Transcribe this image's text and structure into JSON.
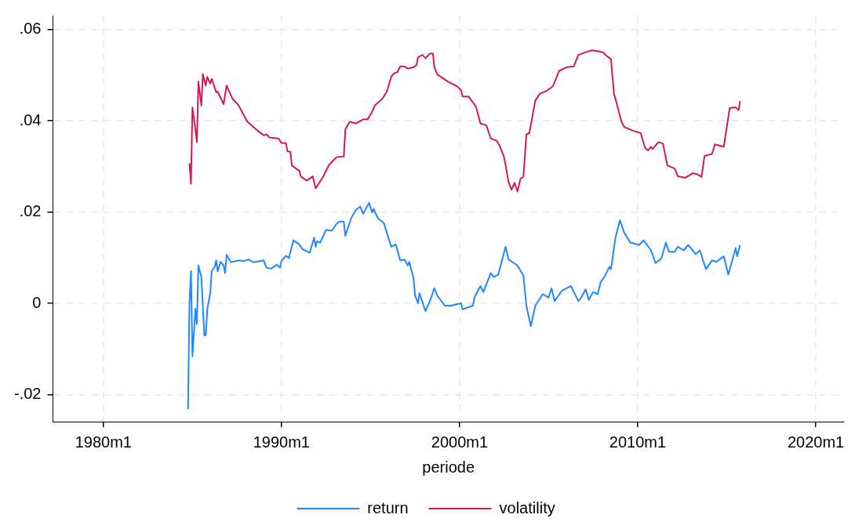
{
  "chart_data": {
    "type": "line",
    "xlabel": "periode",
    "legend": "bottom",
    "grid": true,
    "marker": "none",
    "line_style": "solid",
    "xlim": [
      "1977-03",
      "2021-08"
    ],
    "xticks": [
      {
        "value": "1980-01",
        "label": "1980m1"
      },
      {
        "value": "1990-01",
        "label": "1990m1"
      },
      {
        "value": "2000-01",
        "label": "2000m1"
      },
      {
        "value": "2010-01",
        "label": "2010m1"
      },
      {
        "value": "2020-01",
        "label": "2020m1"
      }
    ],
    "ylim": [
      -0.0259,
      0.063
    ],
    "yticks": [
      {
        "value": -0.02,
        "label": "-.02"
      },
      {
        "value": 0,
        "label": "0"
      },
      {
        "value": 0.02,
        "label": ".02"
      },
      {
        "value": 0.04,
        "label": ".04"
      },
      {
        "value": 0.06,
        "label": ".06"
      }
    ],
    "series": [
      {
        "name": "return",
        "color": "#1f88ff",
        "x": [
          "1984-10",
          "1984-11",
          "1984-12",
          "1985-01",
          "1985-03",
          "1985-04",
          "1985-05",
          "1985-07",
          "1985-09",
          "1985-10",
          "1985-11",
          "1986-01",
          "1986-02",
          "1986-04",
          "1986-05",
          "1986-06",
          "1986-08",
          "1986-10",
          "1986-11",
          "1986-12",
          "1987-03",
          "1987-08",
          "1987-12",
          "1988-03",
          "1988-06",
          "1989-01",
          "1989-03",
          "1989-06",
          "1989-10",
          "1989-12",
          "1990-01",
          "1990-04",
          "1990-06",
          "1990-09",
          "1991-01",
          "1991-03",
          "1991-08",
          "1991-11",
          "1991-12",
          "1992-01",
          "1992-03",
          "1992-07",
          "1992-11",
          "1993-02",
          "1993-04",
          "1993-07",
          "1993-08",
          "1993-12",
          "1994-03",
          "1994-06",
          "1994-08",
          "1994-12",
          "1995-02",
          "1995-03",
          "1995-06",
          "1995-10",
          "1995-12",
          "1996-03",
          "1996-06",
          "1996-09",
          "1996-12",
          "1997-02",
          "1997-03",
          "1997-06",
          "1997-07",
          "1997-09",
          "1997-10",
          "1998-02",
          "1998-05",
          "1998-08",
          "1998-10",
          "1999-03",
          "1999-07",
          "2000-02",
          "2000-03",
          "2000-10",
          "2000-11",
          "2001-03",
          "2001-05",
          "2001-10",
          "2001-12",
          "2002-03",
          "2002-04",
          "2002-08",
          "2002-10",
          "2003-04",
          "2003-08",
          "2003-10",
          "2004-01",
          "2004-04",
          "2004-09",
          "2005-01",
          "2005-03",
          "2005-05",
          "2005-10",
          "2006-04",
          "2006-09",
          "2006-11",
          "2007-02",
          "2007-04",
          "2007-07",
          "2007-10",
          "2007-12",
          "2008-03",
          "2008-06",
          "2008-07",
          "2008-10",
          "2009-01",
          "2009-04",
          "2009-08",
          "2010-02",
          "2010-05",
          "2010-10",
          "2011-01",
          "2011-05",
          "2011-08",
          "2011-10",
          "2012-02",
          "2012-04",
          "2012-08",
          "2012-11",
          "2013-04",
          "2013-07",
          "2013-09",
          "2013-11",
          "2014-03",
          "2014-06",
          "2014-11",
          "2015-02",
          "2015-04",
          "2015-07",
          "2015-08",
          "2015-10"
        ],
        "values": [
          -0.0232,
          0,
          0.0071,
          -0.0116,
          -0.0012,
          -0.0045,
          0.0083,
          0.0058,
          -0.007,
          -0.007,
          -0.0013,
          0.0022,
          0.0071,
          0.008,
          0.0094,
          0.007,
          0.0091,
          0.0083,
          0.0066,
          0.0106,
          0.009,
          0.0094,
          0.0093,
          0.0096,
          0.009,
          0.0094,
          0.0078,
          0.0076,
          0.0085,
          0.0078,
          0.0093,
          0.0104,
          0.0099,
          0.0138,
          0.0129,
          0.0119,
          0.0111,
          0.0144,
          0.0124,
          0.0136,
          0.0133,
          0.0161,
          0.0159,
          0.0174,
          0.0179,
          0.0179,
          0.0148,
          0.0187,
          0.0204,
          0.0212,
          0.0196,
          0.022,
          0.0199,
          0.0207,
          0.0186,
          0.0176,
          0.0154,
          0.0124,
          0.0129,
          0.0094,
          0.0096,
          0.0083,
          0.0091,
          0.0055,
          0.0017,
          0,
          0.0022,
          -0.0017,
          0.0005,
          0.0033,
          0.0017,
          -0.0005,
          -0.0005,
          0,
          -0.0013,
          -0.0005,
          0.0013,
          0.0038,
          0.0025,
          0.0066,
          0.0058,
          0.0063,
          0.0075,
          0.0124,
          0.0096,
          0.0083,
          0.0061,
          -0.0005,
          -0.005,
          -0.0005,
          0.002,
          0.0013,
          0.0033,
          0.0005,
          0.0028,
          0.0038,
          0.0005,
          0.0013,
          0.0031,
          0.0008,
          0.0025,
          0.002,
          0.0046,
          0.0061,
          0.008,
          0.0075,
          0.0144,
          0.0182,
          0.0154,
          0.0133,
          0.0128,
          0.0138,
          0.0116,
          0.0088,
          0.0099,
          0.0133,
          0.0113,
          0.0113,
          0.0124,
          0.0116,
          0.0128,
          0.0108,
          0.0116,
          0.0094,
          0.0075,
          0.0094,
          0.0091,
          0.0103,
          0.0063,
          0.0086,
          0.0121,
          0.0103,
          0.0128
        ]
      },
      {
        "name": "volatility",
        "color": "#d6185a",
        "x": [
          "1984-11",
          "1984-12",
          "1985-01",
          "1985-03",
          "1985-04",
          "1985-05",
          "1985-07",
          "1985-08",
          "1985-10",
          "1985-11",
          "1986-01",
          "1986-02",
          "1986-05",
          "1986-06",
          "1986-10",
          "1986-12",
          "1987-04",
          "1987-08",
          "1988-02",
          "1988-09",
          "1989-01",
          "1989-03",
          "1989-05",
          "1989-11",
          "1990-01",
          "1990-04",
          "1990-05",
          "1990-07",
          "1990-08",
          "1991-01",
          "1991-02",
          "1991-06",
          "1991-10",
          "1991-12",
          "1992-05",
          "1992-09",
          "1992-11",
          "1993-02",
          "1993-07",
          "1993-08",
          "1993-11",
          "1994-03",
          "1994-08",
          "1994-11",
          "1995-02",
          "1995-04",
          "1995-09",
          "1995-12",
          "1996-03",
          "1996-05",
          "1996-07",
          "1996-09",
          "1996-12",
          "1997-02",
          "1997-06",
          "1997-08",
          "1997-09",
          "1997-12",
          "1998-02",
          "1998-05",
          "1998-07",
          "1998-08",
          "1998-10",
          "1999-06",
          "1999-11",
          "2000-02",
          "2000-03",
          "2000-07",
          "2000-12",
          "2001-03",
          "2001-07",
          "2001-10",
          "2002-02",
          "2002-04",
          "2002-07",
          "2002-10",
          "2002-12",
          "2003-02",
          "2003-04",
          "2003-06",
          "2003-08",
          "2003-10",
          "2003-12",
          "2004-04",
          "2004-07",
          "2004-12",
          "2005-04",
          "2005-08",
          "2006-01",
          "2006-06",
          "2006-09",
          "2007-02",
          "2007-06",
          "2007-11",
          "2008-02",
          "2008-04",
          "2008-07",
          "2008-09",
          "2008-11",
          "2009-02",
          "2009-04",
          "2009-10",
          "2010-03",
          "2010-06",
          "2010-08",
          "2010-10",
          "2010-11",
          "2011-03",
          "2011-06",
          "2011-09",
          "2012-02",
          "2012-04",
          "2012-09",
          "2013-02",
          "2013-05",
          "2013-08",
          "2013-10",
          "2014-03",
          "2014-05",
          "2014-11",
          "2015-03",
          "2015-07",
          "2015-09",
          "2015-10"
        ],
        "values": [
          0.0307,
          0.0262,
          0.0429,
          0.0381,
          0.0353,
          0.0486,
          0.0433,
          0.0502,
          0.0477,
          0.0496,
          0.0481,
          0.0492,
          0.0462,
          0.0464,
          0.0436,
          0.0477,
          0.0448,
          0.0434,
          0.0398,
          0.0378,
          0.0368,
          0.037,
          0.0363,
          0.0361,
          0.0351,
          0.0351,
          0.0333,
          0.0332,
          0.0302,
          0.029,
          0.0278,
          0.0269,
          0.0278,
          0.0252,
          0.0277,
          0.0303,
          0.031,
          0.032,
          0.0322,
          0.0381,
          0.0398,
          0.0394,
          0.0403,
          0.0403,
          0.0419,
          0.0434,
          0.0448,
          0.0464,
          0.0497,
          0.0504,
          0.0506,
          0.0519,
          0.0519,
          0.0514,
          0.0517,
          0.0522,
          0.0539,
          0.0544,
          0.0537,
          0.0547,
          0.0547,
          0.0517,
          0.0501,
          0.0484,
          0.0476,
          0.0467,
          0.0453,
          0.0453,
          0.0431,
          0.0394,
          0.039,
          0.0361,
          0.0356,
          0.0345,
          0.032,
          0.0265,
          0.0249,
          0.0264,
          0.0245,
          0.0273,
          0.0277,
          0.037,
          0.0373,
          0.0444,
          0.0459,
          0.0466,
          0.0476,
          0.0509,
          0.0517,
          0.0519,
          0.0544,
          0.055,
          0.0554,
          0.0552,
          0.0549,
          0.0542,
          0.0535,
          0.0459,
          0.0436,
          0.0398,
          0.0386,
          0.0378,
          0.0373,
          0.034,
          0.0335,
          0.0343,
          0.0338,
          0.0353,
          0.035,
          0.0302,
          0.0295,
          0.0278,
          0.0275,
          0.0285,
          0.0283,
          0.0277,
          0.0323,
          0.0327,
          0.0348,
          0.0343,
          0.0428,
          0.0429,
          0.0423,
          0.0443
        ]
      }
    ]
  }
}
